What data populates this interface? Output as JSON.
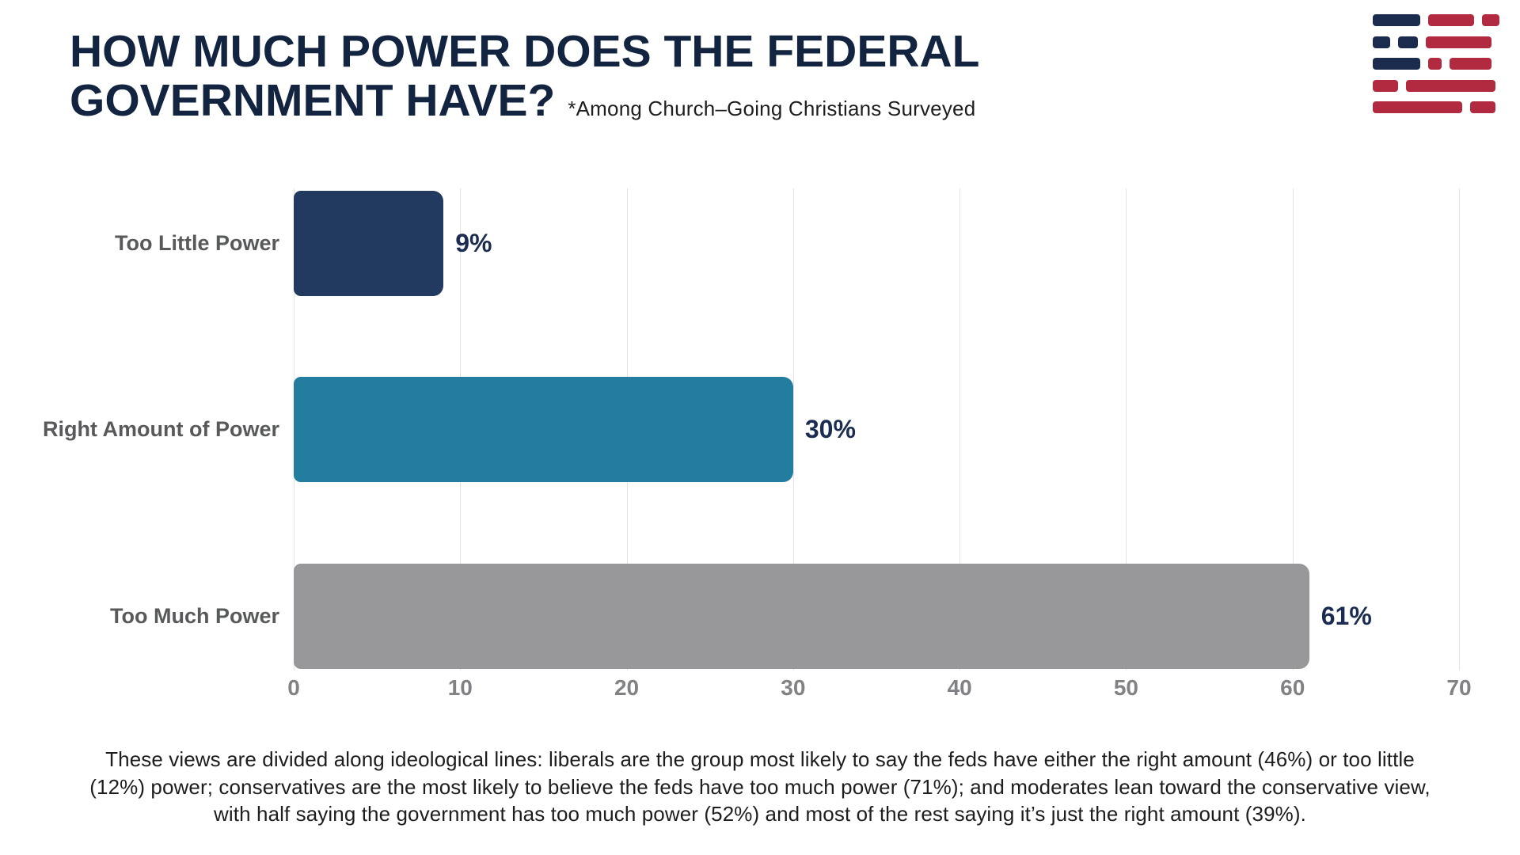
{
  "header": {
    "title_line1": "HOW MUCH POWER DOES THE FEDERAL",
    "title_line2": "GOVERNMENT HAVE?",
    "subtitle": "*Among Church–Going Christians Surveyed"
  },
  "chart_data": {
    "type": "bar",
    "orientation": "horizontal",
    "title": "HOW MUCH POWER DOES THE FEDERAL GOVERNMENT HAVE?",
    "subtitle": "*Among Church–Going Christians Surveyed",
    "categories": [
      "Too Little Power",
      "Right Amount of Power",
      "Too Much Power"
    ],
    "values": [
      9,
      30,
      61
    ],
    "value_labels": [
      "9%",
      "30%",
      "61%"
    ],
    "bar_colors": [
      "#223a60",
      "#237d9e",
      "#98989a"
    ],
    "x_ticks": [
      0,
      10,
      20,
      30,
      40,
      50,
      60,
      70
    ],
    "xlim": [
      0,
      70
    ],
    "grid": "vertical-gridlines-on",
    "legend": "none"
  },
  "footer": {
    "note": "These views are divided along ideological lines: liberals are the group most likely to say the feds have either the right amount (46%) or too little (12%) power; conservatives are the most likely to believe the feds have too much power (71%); and moderates lean toward the conservative view, with half saying the government has too much power (52%) and most of the rest saying it’s just the right amount (39%)."
  },
  "logo": {
    "name": "american-flag-dashes-logo"
  },
  "colors": {
    "title_navy": "#122440",
    "subtitle_ink": "#1e1e1e",
    "label_gray": "#58595b",
    "value_navy": "#1b2c50",
    "tick_gray": "#818285",
    "gridline": "#e3e3e3",
    "footer_ink": "#1d1d1d",
    "logo_navy": "#1a2b4d",
    "logo_red": "#b22a40",
    "bar_navy": "#223a60",
    "bar_teal": "#237d9e",
    "bar_gray": "#98989a"
  }
}
